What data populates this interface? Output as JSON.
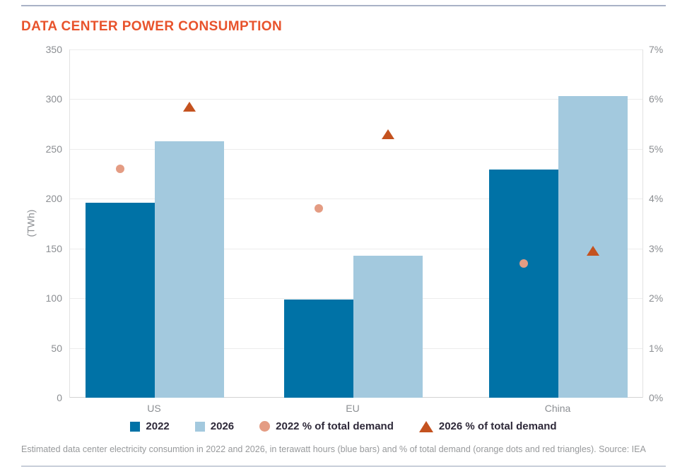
{
  "header": {
    "title": "DATA CENTER POWER CONSUMPTION",
    "title_color": "#e8532c"
  },
  "chart_data": {
    "type": "bar",
    "subtype": "grouped bars with scatter overlay (dual axis)",
    "categories": [
      "US",
      "EU",
      "China"
    ],
    "series": [
      {
        "name": "2022",
        "type": "bar",
        "marker": "square",
        "axis": "left",
        "values": [
          196,
          99,
          229
        ],
        "color": "#0072a6"
      },
      {
        "name": "2026",
        "type": "bar",
        "marker": "square",
        "axis": "left",
        "values": [
          258,
          143,
          303
        ],
        "color": "#a3c9de"
      },
      {
        "name": "2022 % of total demand",
        "type": "scatter",
        "marker": "circle",
        "axis": "right",
        "values": [
          4.6,
          3.8,
          2.7
        ],
        "color": "#e49c83"
      },
      {
        "name": "2026 % of total demand",
        "type": "scatter",
        "marker": "triangle",
        "axis": "right",
        "values": [
          5.85,
          5.3,
          2.95
        ],
        "color": "#c4521f"
      }
    ],
    "ylabel_left": "(TWh)",
    "ylim_left": [
      0,
      350
    ],
    "yticks_left": [
      "0",
      "50",
      "100",
      "150",
      "200",
      "250",
      "300",
      "350"
    ],
    "ylim_right": [
      0,
      7
    ],
    "yticks_right": [
      "0%",
      "1%",
      "2%",
      "3%",
      "4%",
      "5%",
      "6%",
      "7%"
    ],
    "grid": true,
    "legend_position": "bottom"
  },
  "caption": "Estimated data center electricity consumtion in 2022 and 2026, in terawatt hours (blue bars) and % of total demand (orange dots and red triangles). Source: IEA"
}
